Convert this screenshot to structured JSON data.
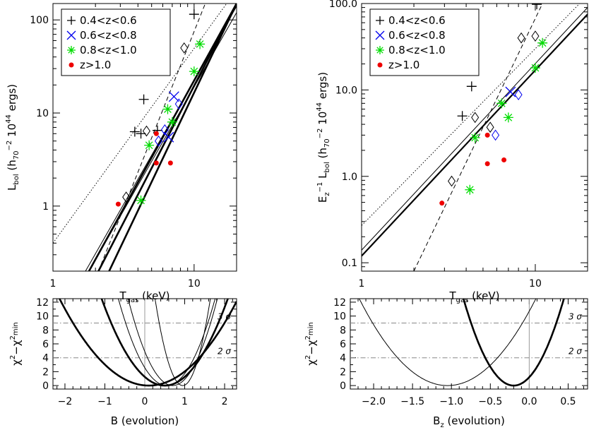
{
  "chart_data": [
    {
      "type": "scatter",
      "panel": "top-left",
      "xlabel_main": "T",
      "xlabel_sub": "gas",
      "xlabel_unit": " (keV)",
      "ylabel_parts": [
        "L",
        "bol",
        " (h",
        "70",
        "−2",
        " 10",
        "44",
        " ergs)"
      ],
      "xscale": "log",
      "yscale": "log",
      "xlim": [
        1,
        20
      ],
      "ylim": [
        0.2,
        150
      ],
      "xticks": [
        {
          "v": 1,
          "label": "1"
        },
        {
          "v": 10,
          "label": "10"
        }
      ],
      "yticks": [
        {
          "v": 1,
          "label": "1"
        },
        {
          "v": 10,
          "label": "10"
        },
        {
          "v": 100,
          "label": "100"
        }
      ],
      "legend": {
        "position": "top-left",
        "entries": [
          {
            "label": "0.4<z<0.6",
            "marker": "plus",
            "color": "#000000"
          },
          {
            "label": "0.6<z<0.8",
            "marker": "x",
            "color": "#0000ee"
          },
          {
            "label": "0.8<z<1.0",
            "marker": "asterisk",
            "color": "#00dd00"
          },
          {
            "label": "z>1.0",
            "marker": "dot",
            "color": "#ee0000"
          }
        ]
      },
      "points": [
        {
          "x": 3.8,
          "y": 6.3,
          "m": "plus",
          "c": "#000000"
        },
        {
          "x": 4.2,
          "y": 6.0,
          "m": "plus",
          "c": "#000000"
        },
        {
          "x": 4.6,
          "y": 6.4,
          "m": "diamond",
          "c": "#000000"
        },
        {
          "x": 4.4,
          "y": 14.0,
          "m": "plus",
          "c": "#000000"
        },
        {
          "x": 5.5,
          "y": 6.5,
          "m": "plus",
          "c": "#000000"
        },
        {
          "x": 8.5,
          "y": 50,
          "m": "diamond",
          "c": "#000000"
        },
        {
          "x": 10.0,
          "y": 115,
          "m": "plus",
          "c": "#000000"
        },
        {
          "x": 3.3,
          "y": 1.25,
          "m": "diamond",
          "c": "#000000"
        },
        {
          "x": 7.2,
          "y": 15,
          "m": "x",
          "c": "#0000ee"
        },
        {
          "x": 7.8,
          "y": 12.5,
          "m": "diamond",
          "c": "#0000ee"
        },
        {
          "x": 6.2,
          "y": 6.6,
          "m": "diamond",
          "c": "#0000ee"
        },
        {
          "x": 5.6,
          "y": 5.0,
          "m": "diamond",
          "c": "#0000ee"
        },
        {
          "x": 6.6,
          "y": 5.5,
          "m": "x",
          "c": "#0000ee"
        },
        {
          "x": 11.0,
          "y": 55,
          "m": "asterisk",
          "c": "#00dd00"
        },
        {
          "x": 10.0,
          "y": 28,
          "m": "asterisk",
          "c": "#00dd00"
        },
        {
          "x": 6.5,
          "y": 11,
          "m": "asterisk",
          "c": "#00dd00"
        },
        {
          "x": 7.0,
          "y": 8.0,
          "m": "asterisk",
          "c": "#00dd00"
        },
        {
          "x": 4.8,
          "y": 4.5,
          "m": "asterisk",
          "c": "#00dd00"
        },
        {
          "x": 4.2,
          "y": 1.15,
          "m": "asterisk",
          "c": "#00dd00"
        },
        {
          "x": 5.4,
          "y": 6.0,
          "m": "dot",
          "c": "#ee0000"
        },
        {
          "x": 5.4,
          "y": 2.9,
          "m": "dot",
          "c": "#ee0000"
        },
        {
          "x": 6.8,
          "y": 2.9,
          "m": "dot",
          "c": "#ee0000"
        },
        {
          "x": 2.9,
          "y": 1.05,
          "m": "dot",
          "c": "#ee0000"
        }
      ],
      "lines": [
        {
          "x1": 1.8,
          "y1": 0.2,
          "x2": 20,
          "y2": 150,
          "w": 2.6,
          "dash": ""
        },
        {
          "x1": 2.1,
          "y1": 0.2,
          "x2": 20,
          "y2": 150,
          "w": 2.6,
          "dash": ""
        },
        {
          "x1": 2.5,
          "y1": 0.2,
          "x2": 20,
          "y2": 150,
          "w": 2.6,
          "dash": ""
        },
        {
          "x1": 1.7,
          "y1": 0.2,
          "x2": 20,
          "y2": 140,
          "w": 1,
          "dash": ""
        },
        {
          "x1": 1.8,
          "y1": 0.2,
          "x2": 20,
          "y2": 120,
          "w": 1,
          "dash": ""
        },
        {
          "x1": 2.1,
          "y1": 0.2,
          "x2": 12,
          "y2": 150,
          "w": 1,
          "dash": "6 4"
        },
        {
          "x1": 1,
          "y1": 0.4,
          "x2": 17,
          "y2": 150,
          "w": 1,
          "dash": "1.5 2.5"
        }
      ]
    },
    {
      "type": "scatter",
      "panel": "top-right",
      "xlabel_main": "T",
      "xlabel_sub": "gas",
      "xlabel_unit": " (keV)",
      "ylabel_parts": [
        "E",
        "z",
        "−1",
        " L",
        "bol",
        " (h",
        "70",
        "−2",
        " 10",
        "44",
        " ergs)"
      ],
      "xscale": "log",
      "yscale": "log",
      "xlim": [
        1,
        20
      ],
      "ylim": [
        0.08,
        100
      ],
      "xticks": [
        {
          "v": 1,
          "label": "1"
        },
        {
          "v": 10,
          "label": "10"
        }
      ],
      "yticks": [
        {
          "v": 0.1,
          "label": "0.1"
        },
        {
          "v": 1,
          "label": "1.0"
        },
        {
          "v": 10,
          "label": "10.0"
        },
        {
          "v": 100,
          "label": "100.0"
        }
      ],
      "legend": {
        "position": "top-left",
        "entries": [
          {
            "label": "0.4<z<0.6",
            "marker": "plus",
            "color": "#000000"
          },
          {
            "label": "0.6<z<0.8",
            "marker": "x",
            "color": "#0000ee"
          },
          {
            "label": "0.8<z<1.0",
            "marker": "asterisk",
            "color": "#00dd00"
          },
          {
            "label": "z>1.0",
            "marker": "dot",
            "color": "#ee0000"
          }
        ]
      },
      "points": [
        {
          "x": 3.8,
          "y": 5.0,
          "m": "plus",
          "c": "#000000"
        },
        {
          "x": 4.5,
          "y": 4.8,
          "m": "diamond",
          "c": "#000000"
        },
        {
          "x": 4.3,
          "y": 11.0,
          "m": "plus",
          "c": "#000000"
        },
        {
          "x": 5.5,
          "y": 3.7,
          "m": "diamond",
          "c": "#000000"
        },
        {
          "x": 8.3,
          "y": 40,
          "m": "diamond",
          "c": "#000000"
        },
        {
          "x": 10.0,
          "y": 42,
          "m": "diamond",
          "c": "#000000"
        },
        {
          "x": 10.2,
          "y": 98,
          "m": "plus",
          "c": "#000000"
        },
        {
          "x": 3.3,
          "y": 0.88,
          "m": "diamond",
          "c": "#000000"
        },
        {
          "x": 7.2,
          "y": 9.5,
          "m": "x",
          "c": "#0000ee"
        },
        {
          "x": 8.0,
          "y": 8.8,
          "m": "diamond",
          "c": "#0000ee"
        },
        {
          "x": 5.9,
          "y": 3.0,
          "m": "diamond",
          "c": "#0000ee"
        },
        {
          "x": 11.0,
          "y": 35,
          "m": "asterisk",
          "c": "#00dd00"
        },
        {
          "x": 10.0,
          "y": 18,
          "m": "asterisk",
          "c": "#00dd00"
        },
        {
          "x": 6.4,
          "y": 7.0,
          "m": "asterisk",
          "c": "#00dd00"
        },
        {
          "x": 7.0,
          "y": 4.8,
          "m": "asterisk",
          "c": "#00dd00"
        },
        {
          "x": 4.5,
          "y": 2.8,
          "m": "asterisk",
          "c": "#00dd00"
        },
        {
          "x": 4.2,
          "y": 0.7,
          "m": "asterisk",
          "c": "#00dd00"
        },
        {
          "x": 5.3,
          "y": 3.0,
          "m": "dot",
          "c": "#ee0000"
        },
        {
          "x": 5.3,
          "y": 1.4,
          "m": "dot",
          "c": "#ee0000"
        },
        {
          "x": 6.6,
          "y": 1.55,
          "m": "dot",
          "c": "#ee0000"
        },
        {
          "x": 2.9,
          "y": 0.49,
          "m": "dot",
          "c": "#ee0000"
        }
      ],
      "lines": [
        {
          "x1": 1,
          "y1": 0.12,
          "x2": 20,
          "y2": 75,
          "w": 2.2,
          "dash": ""
        },
        {
          "x1": 1,
          "y1": 0.14,
          "x2": 20,
          "y2": 90,
          "w": 1,
          "dash": ""
        },
        {
          "x1": 1,
          "y1": 0.27,
          "x2": 18,
          "y2": 100,
          "w": 1,
          "dash": "1.5 2.5"
        },
        {
          "x1": 2.0,
          "y1": 0.08,
          "x2": 11,
          "y2": 100,
          "w": 1,
          "dash": "6 4"
        }
      ]
    },
    {
      "type": "line",
      "panel": "bottom-left",
      "xlabel": "B (evolution)",
      "ylabel_parts": [
        "χ",
        "2",
        "−χ",
        "2",
        "min"
      ],
      "xlim": [
        -2.3,
        2.3
      ],
      "ylim": [
        -0.5,
        12.5
      ],
      "xticks": [
        {
          "v": -2,
          "label": "−2"
        },
        {
          "v": -1,
          "label": "−1"
        },
        {
          "v": 0,
          "label": "0"
        },
        {
          "v": 1,
          "label": "1"
        },
        {
          "v": 2,
          "label": "2"
        }
      ],
      "yticks": [
        {
          "v": 0,
          "label": "0"
        },
        {
          "v": 2,
          "label": "2"
        },
        {
          "v": 4,
          "label": "4"
        },
        {
          "v": 6,
          "label": "6"
        },
        {
          "v": 8,
          "label": "8"
        },
        {
          "v": 10,
          "label": "10"
        },
        {
          "v": 12,
          "label": "12"
        }
      ],
      "sigma_lines": [
        {
          "y": 9,
          "label": "3 σ"
        },
        {
          "y": 4,
          "label": "2 σ"
        }
      ],
      "parabolas": [
        {
          "center": 0.1,
          "k": 2.5,
          "w": 2.6
        },
        {
          "center": 0.5,
          "k": 5.0,
          "w": 2.6
        },
        {
          "center": 0.55,
          "k": 8.5,
          "w": 1
        },
        {
          "center": 0.7,
          "k": 10.0,
          "w": 1
        },
        {
          "center": 0.95,
          "k": 26.0,
          "w": 1
        }
      ]
    },
    {
      "type": "line",
      "panel": "bottom-right",
      "xlabel_main": "B",
      "xlabel_sub": "z",
      "xlabel_unit": " (evolution)",
      "ylabel_parts": [
        "χ",
        "2",
        "−χ",
        "2",
        "min"
      ],
      "xlim": [
        -2.3,
        0.75
      ],
      "ylim": [
        -0.5,
        12.5
      ],
      "xticks": [
        {
          "v": -2.0,
          "label": "−2.0"
        },
        {
          "v": -1.5,
          "label": "−1.5"
        },
        {
          "v": -1.0,
          "label": "−1.0"
        },
        {
          "v": -0.5,
          "label": "−0.5"
        },
        {
          "v": 0.0,
          "label": "0.0"
        },
        {
          "v": 0.5,
          "label": "0.5"
        }
      ],
      "yticks": [
        {
          "v": 0,
          "label": "0"
        },
        {
          "v": 2,
          "label": "2"
        },
        {
          "v": 4,
          "label": "4"
        },
        {
          "v": 6,
          "label": "6"
        },
        {
          "v": 8,
          "label": "8"
        },
        {
          "v": 10,
          "label": "10"
        },
        {
          "v": 12,
          "label": "12"
        }
      ],
      "sigma_lines": [
        {
          "y": 9,
          "label": "3 σ"
        },
        {
          "y": 4,
          "label": "2 σ"
        }
      ],
      "parabolas": [
        {
          "center": -1.05,
          "k": 9.7,
          "w": 1
        },
        {
          "center": -0.2,
          "k": 30.0,
          "w": 2.6
        }
      ]
    }
  ]
}
